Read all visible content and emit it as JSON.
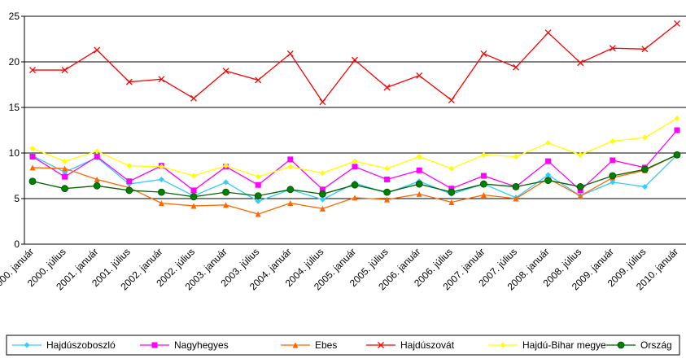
{
  "chart_data": {
    "type": "line",
    "categories": [
      "2000. január",
      "2000. július",
      "2001. január",
      "2001. július",
      "2002. január",
      "2002. július",
      "2003. január",
      "2003. július",
      "2004. január",
      "2004. július",
      "2005. január",
      "2005. július",
      "2006. január",
      "2006. július",
      "2007. január",
      "2007. július",
      "2008. január",
      "2008. július",
      "2009. január",
      "2009. július",
      "2010. január"
    ],
    "ylim": [
      0,
      25
    ],
    "yticks": [
      0,
      5,
      10,
      15,
      20,
      25
    ],
    "grid": true,
    "legend": "bottom",
    "series": [
      {
        "name": "Hajdúszoboszló",
        "color": "#33ccff",
        "marker": "diamond",
        "values": [
          9.7,
          7.9,
          9.5,
          6.6,
          7.1,
          5.3,
          6.8,
          4.7,
          6.0,
          4.9,
          6.7,
          5.6,
          6.9,
          5.5,
          6.6,
          5.1,
          7.6,
          5.3,
          6.8,
          6.3,
          9.8
        ]
      },
      {
        "name": "Nagyhegyes",
        "color": "#ff00ff",
        "marker": "square",
        "values": [
          9.6,
          7.4,
          9.6,
          6.9,
          8.6,
          5.9,
          8.5,
          6.5,
          9.3,
          6.0,
          8.5,
          7.1,
          8.1,
          6.1,
          7.5,
          6.3,
          9.1,
          5.9,
          9.2,
          8.4,
          12.5
        ]
      },
      {
        "name": "Ebes",
        "color": "#ff6600",
        "marker": "triangle",
        "values": [
          8.4,
          8.3,
          7.1,
          6.2,
          4.5,
          4.2,
          4.3,
          3.3,
          4.5,
          3.9,
          5.1,
          4.9,
          5.5,
          4.6,
          5.4,
          5.0,
          7.2,
          5.3,
          7.3,
          8.1,
          9.8
        ]
      },
      {
        "name": "Hajdúszovát",
        "color": "#ff0000",
        "marker": "x",
        "values": [
          19.1,
          19.1,
          21.3,
          17.8,
          18.1,
          16.0,
          19.0,
          18.0,
          20.9,
          15.6,
          20.2,
          17.2,
          18.5,
          15.8,
          20.9,
          19.4,
          23.2,
          19.9,
          21.5,
          21.4,
          24.2
        ]
      },
      {
        "name": "Hajdú-Bihar megye",
        "color": "#ffff00",
        "marker": "diamond",
        "values": [
          10.5,
          9.1,
          10.2,
          8.6,
          8.5,
          7.5,
          8.6,
          7.4,
          8.5,
          7.8,
          9.1,
          8.3,
          9.6,
          8.3,
          9.8,
          9.6,
          11.1,
          9.8,
          11.3,
          11.7,
          13.8
        ]
      },
      {
        "name": "Ország",
        "color": "#008000",
        "marker": "circle",
        "values": [
          6.9,
          6.1,
          6.4,
          5.9,
          5.7,
          5.2,
          5.7,
          5.3,
          6.0,
          5.5,
          6.5,
          5.7,
          6.6,
          5.7,
          6.6,
          6.3,
          7.0,
          6.3,
          7.5,
          8.2,
          9.8
        ]
      }
    ]
  }
}
